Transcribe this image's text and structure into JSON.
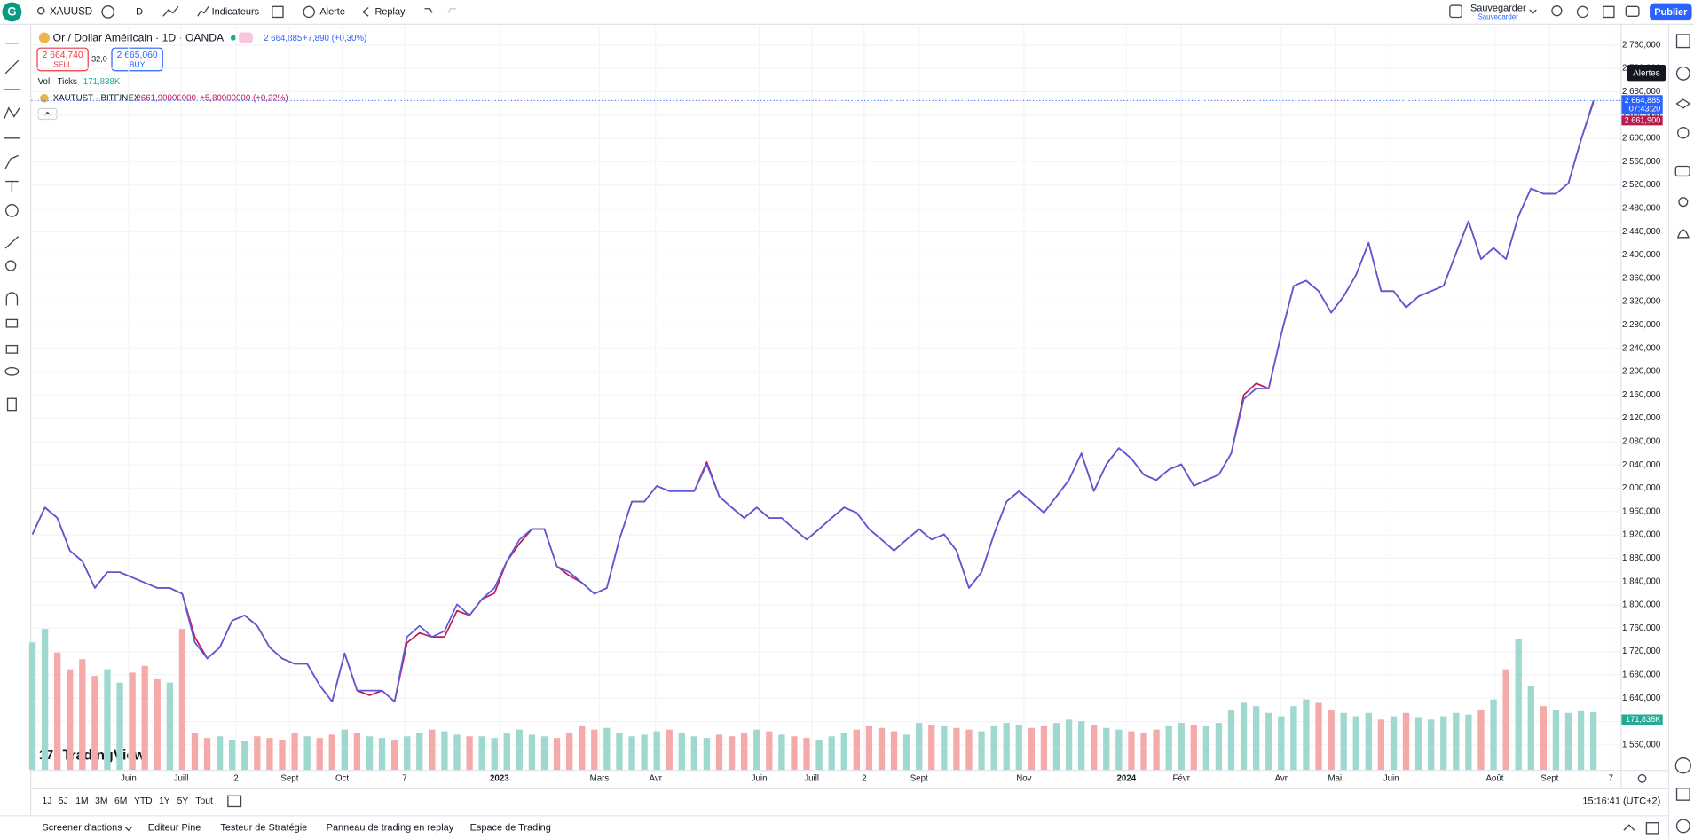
{
  "toolbar": {
    "logo": "G",
    "symbol": "XAUUSD",
    "interval": "D",
    "indicators": "Indicateurs",
    "alert": "Alerte",
    "replay": "Replay",
    "save": "Sauvegarder",
    "save_sub": "Sauvegarder",
    "publish": "Publier",
    "tooltip": "Alertes"
  },
  "legend": {
    "change": "+7,890 (+0,30%)",
    "sell_price": "2 664,740",
    "sell": "SELL",
    "spread": "32,0",
    "buy_price": "2 665,060",
    "buy": "BUY",
    "compare_price": "2661,90000000",
    "compare_change": "+5,80000000 (+0,22%)"
  },
  "chart_data": {
    "type": "line",
    "series": [
      {
        "name": "Or / Dollar Américain · 1D · OANDA",
        "color": "#5a5ad8",
        "values": [
          1921,
          1967,
          1949,
          1893,
          1875,
          1829,
          1856,
          1856,
          1847,
          1838,
          1829,
          1829,
          1819,
          1736,
          1708,
          1727,
          1773,
          1782,
          1764,
          1727,
          1708,
          1699,
          1699,
          1662,
          1634,
          1717,
          1653,
          1653,
          1653,
          1634,
          1745,
          1764,
          1745,
          1755,
          1801,
          1782,
          1810,
          1829,
          1875,
          1912,
          1930,
          1930,
          1866,
          1856,
          1838,
          1819,
          1829,
          1912,
          1977,
          1977,
          2004,
          1995,
          1995,
          1995,
          2041,
          1986,
          1967,
          1949,
          1967,
          1949,
          1949,
          1930,
          1912,
          1930,
          1949,
          1967,
          1958,
          1930,
          1912,
          1893,
          1912,
          1930,
          1912,
          1921,
          1893,
          1829,
          1856,
          1921,
          1977,
          1995,
          1977,
          1958,
          1986,
          2014,
          2060,
          1995,
          2041,
          2069,
          2051,
          2023,
          2014,
          2032,
          2041,
          2004,
          2014,
          2023,
          2060,
          2153,
          2171,
          2171,
          2264,
          2347,
          2356,
          2338,
          2301,
          2329,
          2366,
          2421,
          2338,
          2338,
          2310,
          2329,
          2338,
          2347,
          2403,
          2458,
          2393,
          2412,
          2393,
          2467,
          2514,
          2505,
          2505,
          2523,
          2597,
          2664.885
        ]
      },
      {
        "name": "XAUTUST · BITFINEX",
        "color": "#c2185b",
        "values": [
          1921,
          1967,
          1949,
          1893,
          1875,
          1829,
          1856,
          1856,
          1847,
          1838,
          1829,
          1829,
          1819,
          1745,
          1708,
          1727,
          1773,
          1782,
          1764,
          1727,
          1708,
          1699,
          1699,
          1662,
          1634,
          1717,
          1653,
          1645,
          1653,
          1634,
          1735,
          1752,
          1745,
          1745,
          1790,
          1782,
          1810,
          1820,
          1875,
          1905,
          1930,
          1930,
          1866,
          1850,
          1838,
          1819,
          1829,
          1912,
          1977,
          1977,
          2004,
          1995,
          1995,
          1995,
          2045,
          1986,
          1967,
          1949,
          1967,
          1949,
          1949,
          1930,
          1912,
          1930,
          1949,
          1967,
          1958,
          1930,
          1912,
          1893,
          1912,
          1930,
          1912,
          1921,
          1893,
          1829,
          1856,
          1921,
          1977,
          1995,
          1977,
          1958,
          1986,
          2014,
          2060,
          1995,
          2041,
          2069,
          2051,
          2023,
          2014,
          2032,
          2041,
          2004,
          2014,
          2023,
          2060,
          2160,
          2180,
          2171,
          2264,
          2347,
          2356,
          2338,
          2301,
          2329,
          2366,
          2421,
          2338,
          2338,
          2310,
          2329,
          2338,
          2347,
          2403,
          2458,
          2393,
          2412,
          2393,
          2467,
          2514,
          2505,
          2505,
          2523,
          2597,
          2661.9
        ]
      }
    ],
    "last_price": {
      "value": 2664.885,
      "label": "2 664,885"
    },
    "countdown": "07:43:20",
    "compare_last": {
      "value": 2661.9,
      "label": "2 661,900"
    },
    "volume": {
      "name": "Vol · Ticks",
      "up_color": "#9fd8cf",
      "down_color": "#f5aaaa",
      "ylim": [
        0,
        560
      ],
      "last": {
        "value": 171.838,
        "label": "171,838K"
      },
      "values": [
        380,
        420,
        350,
        300,
        330,
        280,
        300,
        260,
        290,
        310,
        270,
        260,
        420,
        110,
        95,
        100,
        90,
        85,
        100,
        95,
        90,
        110,
        100,
        95,
        105,
        120,
        110,
        100,
        95,
        90,
        100,
        110,
        120,
        115,
        105,
        100,
        100,
        95,
        110,
        120,
        105,
        100,
        95,
        110,
        130,
        120,
        125,
        110,
        100,
        105,
        115,
        120,
        110,
        100,
        95,
        105,
        100,
        110,
        120,
        115,
        105,
        100,
        95,
        90,
        100,
        110,
        120,
        130,
        125,
        115,
        105,
        140,
        135,
        130,
        125,
        120,
        115,
        130,
        140,
        135,
        125,
        130,
        140,
        150,
        145,
        135,
        125,
        120,
        115,
        110,
        120,
        130,
        140,
        135,
        130,
        140,
        180,
        200,
        190,
        170,
        160,
        190,
        210,
        200,
        180,
        170,
        160,
        170,
        150,
        160,
        170,
        155,
        150,
        160,
        170,
        165,
        180,
        210,
        300,
        390,
        250,
        190,
        180,
        170,
        175,
        171.838
      ]
    },
    "xlim": [
      0,
      127
    ],
    "xticks": [
      {
        "value": 7.7,
        "label": "Juin"
      },
      {
        "value": 11.9,
        "label": "Juill"
      },
      {
        "value": 16.3,
        "label": "2"
      },
      {
        "value": 20.6,
        "label": "Sept"
      },
      {
        "value": 24.8,
        "label": "Oct"
      },
      {
        "value": 29.8,
        "label": "7"
      },
      {
        "value": 37.4,
        "label": "2023"
      },
      {
        "value": 45.4,
        "label": "Mars"
      },
      {
        "value": 49.9,
        "label": "Avr"
      },
      {
        "value": 58.2,
        "label": "Juin"
      },
      {
        "value": 62.4,
        "label": "Juill"
      },
      {
        "value": 66.6,
        "label": "2"
      },
      {
        "value": 71.0,
        "label": "Sept"
      },
      {
        "value": 79.4,
        "label": "Nov"
      },
      {
        "value": 87.6,
        "label": "2024"
      },
      {
        "value": 92.0,
        "label": "Févr"
      },
      {
        "value": 100.0,
        "label": "Avr"
      },
      {
        "value": 104.3,
        "label": "Mai"
      },
      {
        "value": 108.8,
        "label": "Juin"
      },
      {
        "value": 117.1,
        "label": "Août"
      },
      {
        "value": 121.5,
        "label": "Sept"
      },
      {
        "value": 126.4,
        "label": "7"
      }
    ],
    "ylim": [
      1517,
      2791
    ],
    "yticks": [
      {
        "value": 1560,
        "label": "1 560,000"
      },
      {
        "value": 1600,
        "label": "1 600,000"
      },
      {
        "value": 1640,
        "label": "1 640,000"
      },
      {
        "value": 1680,
        "label": "1 680,000"
      },
      {
        "value": 1720,
        "label": "1 720,000"
      },
      {
        "value": 1760,
        "label": "1 760,000"
      },
      {
        "value": 1800,
        "label": "1 800,000"
      },
      {
        "value": 1840,
        "label": "1 840,000"
      },
      {
        "value": 1880,
        "label": "1 880,000"
      },
      {
        "value": 1920,
        "label": "1 920,000"
      },
      {
        "value": 1960,
        "label": "1 960,000"
      },
      {
        "value": 2000,
        "label": "2 000,000"
      },
      {
        "value": 2040,
        "label": "2 040,000"
      },
      {
        "value": 2080,
        "label": "2 080,000"
      },
      {
        "value": 2120,
        "label": "2 120,000"
      },
      {
        "value": 2160,
        "label": "2 160,000"
      },
      {
        "value": 2200,
        "label": "2 200,000"
      },
      {
        "value": 2240,
        "label": "2 240,000"
      },
      {
        "value": 2280,
        "label": "2 280,000"
      },
      {
        "value": 2320,
        "label": "2 320,000"
      },
      {
        "value": 2360,
        "label": "2 360,000"
      },
      {
        "value": 2400,
        "label": "2 400,000"
      },
      {
        "value": 2440,
        "label": "2 440,000"
      },
      {
        "value": 2480,
        "label": "2 480,000"
      },
      {
        "value": 2520,
        "label": "2 520,000"
      },
      {
        "value": 2560,
        "label": "2 560,000"
      },
      {
        "value": 2600,
        "label": "2 600,000"
      },
      {
        "value": 2640,
        "label": "2 640,000"
      },
      {
        "value": 2680,
        "label": "2 680,000"
      },
      {
        "value": 2720,
        "label": "2 720,000"
      },
      {
        "value": 2760,
        "label": "2 760,000"
      }
    ],
    "grid": true
  },
  "watermark": "TradingView",
  "timeframes": [
    "1J",
    "5J",
    "1M",
    "3M",
    "6M",
    "YTD",
    "1Y",
    "5Y",
    "Tout"
  ],
  "clock": "15:16:41 (UTC+2)",
  "tabs": [
    "Screener d'actions",
    "Editeur Pine",
    "Testeur de Stratégie",
    "Panneau de trading en replay",
    "Espace de Trading"
  ]
}
